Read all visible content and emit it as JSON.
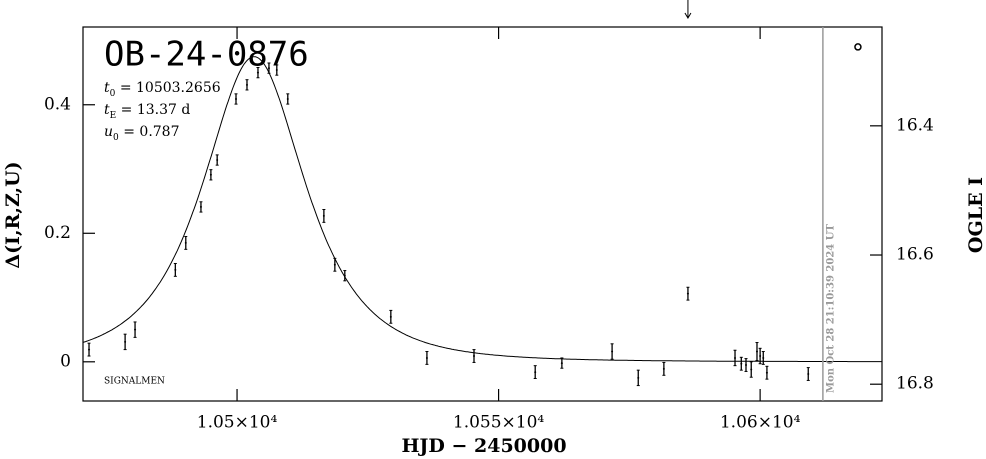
{
  "chart_data": {
    "type": "errorbar",
    "title": "OB-24-0876",
    "note": "SIGNALMEN",
    "xlabel": "HJD − 2450000",
    "ylabel": "Δ(I,R,Z,U)",
    "y2label": "OGLE I",
    "xlim": [
      10470.55,
      10623.3
    ],
    "ylim": [
      -0.061,
      0.521
    ],
    "y2lim": [
      16.826,
      16.247
    ],
    "xticks": [
      {
        "value": 10500,
        "label": "1.05×10⁴"
      },
      {
        "value": 10550,
        "label": "1.055×10⁴"
      },
      {
        "value": 10600,
        "label": "1.06×10⁴"
      }
    ],
    "yticks": [
      0,
      0.2,
      0.4
    ],
    "y2ticks": [
      16.4,
      16.6,
      16.8
    ],
    "params": [
      {
        "symbol": "t",
        "sub": "0",
        "eq": " = ",
        "value": 10503.2656
      },
      {
        "symbol": "t",
        "sub": "E",
        "eq": " = ",
        "value": 13.37,
        "unit": " d"
      },
      {
        "symbol": "u",
        "sub": "0",
        "eq": " = ",
        "value": 0.787
      }
    ],
    "series": [
      {
        "color": "#000000",
        "x": [
          10471.7,
          10478.6,
          10480.5,
          10488.2,
          10490.2,
          10493.1,
          10495.0,
          10496.2,
          10499.8,
          10501.9,
          10504.0,
          10506.1,
          10507.6,
          10509.7,
          10516.6,
          10518.7,
          10520.6,
          10529.4,
          10536.3,
          10545.3,
          10557.0,
          10562.1,
          10571.7,
          10576.7,
          10581.6,
          10586.2,
          10595.2,
          10596.4,
          10597.3,
          10598.3,
          10599.4,
          10600.0,
          10600.6,
          10601.3,
          10609.2
        ],
        "values": [
          0.019,
          0.031,
          0.05,
          0.143,
          0.185,
          0.241,
          0.291,
          0.314,
          0.409,
          0.431,
          0.45,
          0.457,
          0.454,
          0.409,
          0.227,
          0.151,
          0.134,
          0.07,
          0.006,
          0.009,
          -0.016,
          -0.002,
          0.016,
          -0.025,
          -0.011,
          0.106,
          0.006,
          -0.003,
          -0.005,
          -0.012,
          0.016,
          0.009,
          0.006,
          -0.017,
          -0.019
        ],
        "errors": [
          0.01,
          0.012,
          0.012,
          0.01,
          0.01,
          0.008,
          0.008,
          0.008,
          0.008,
          0.008,
          0.008,
          0.008,
          0.008,
          0.008,
          0.01,
          0.01,
          0.008,
          0.01,
          0.01,
          0.01,
          0.01,
          0.008,
          0.012,
          0.012,
          0.01,
          0.01,
          0.012,
          0.01,
          0.01,
          0.012,
          0.014,
          0.012,
          0.01,
          0.01,
          0.01
        ]
      }
    ],
    "latest": {
      "x": 10618.7,
      "value": 0.49
    },
    "now_line": {
      "x": 10612.0,
      "label": "Mon Oct 28 21:10:39 2024 UT",
      "color": "#999999"
    },
    "arrow": {
      "x": 10586.2
    }
  }
}
